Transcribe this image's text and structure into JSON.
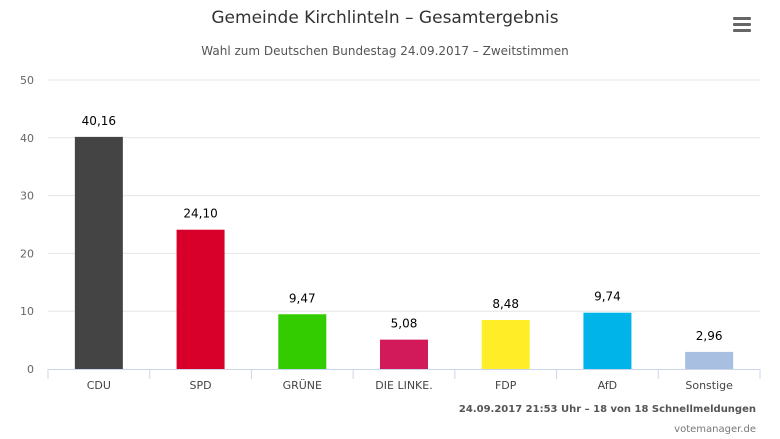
{
  "header": {
    "title": "Gemeinde Kirchlinteln – Gesamtergebnis",
    "subtitle": "Wahl zum Deutschen Bundestag 24.09.2017 – Zweitstimmen",
    "menu_icon": "hamburger-menu-icon"
  },
  "footer": {
    "credits": "24.09.2017 21:53 Uhr – 18 von 18 Schnellmeldungen",
    "source": "votemanager.de"
  },
  "chart_data": {
    "type": "bar",
    "categories": [
      "CDU",
      "SPD",
      "GRÜNE",
      "DIE LINKE.",
      "FDP",
      "AfD",
      "Sonstige"
    ],
    "values": [
      40.16,
      24.1,
      9.47,
      5.08,
      8.48,
      9.74,
      2.96
    ],
    "data_labels": [
      "40,16",
      "24,10",
      "9,47",
      "5,08",
      "8,48",
      "9,74",
      "2,96"
    ],
    "colors": [
      "#444444",
      "#d8002a",
      "#33cc00",
      "#d21a5a",
      "#ffed27",
      "#00b4ea",
      "#a8bfe2"
    ],
    "ylim": [
      0,
      50
    ],
    "yticks": [
      0,
      10,
      20,
      30,
      40,
      50
    ],
    "grid": true,
    "legend": "none"
  }
}
